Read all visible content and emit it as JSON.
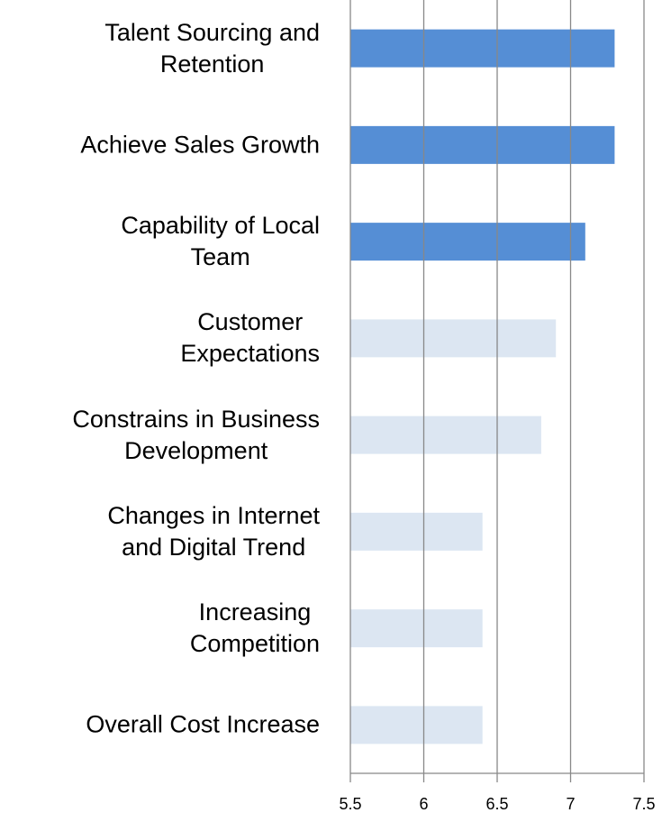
{
  "chart_data": {
    "type": "barh",
    "categories": [
      "Talent Sourcing and\nRetention",
      "Achieve Sales Growth",
      "Capability of Local\nTeam",
      "Customer\nExpectations",
      "Constrains in Business\nDevelopment",
      "Changes in Internet\nand Digital Trend",
      "Increasing\nCompetition",
      "Overall Cost Increase"
    ],
    "values": [
      7.3,
      7.3,
      7.1,
      6.9,
      6.8,
      6.4,
      6.4,
      6.4
    ],
    "colors": [
      "#558ed5",
      "#558ed5",
      "#558ed5",
      "#dce6f2",
      "#dce6f2",
      "#dce6f2",
      "#dce6f2",
      "#dce6f2"
    ],
    "xlim": [
      5.5,
      7.5
    ],
    "xticks": [
      5.5,
      6,
      6.5,
      7,
      7.5
    ],
    "grid": true
  }
}
